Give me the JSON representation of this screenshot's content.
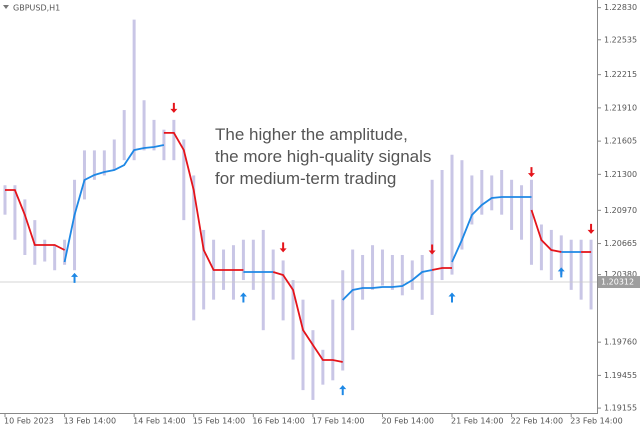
{
  "chart_data": {
    "type": "line",
    "title": "GBPUSD,H1",
    "annotation": [
      "The higher the amplitude,",
      "the more high-quality signals",
      "for medium-term trading"
    ],
    "categories": [
      "10 Feb 2023",
      null,
      null,
      null,
      null,
      null,
      "13 Feb 14:00",
      null,
      null,
      null,
      null,
      null,
      null,
      "14 Feb 14:00",
      null,
      null,
      null,
      null,
      null,
      "15 Feb 14:00",
      null,
      null,
      null,
      null,
      null,
      "16 Feb 14:00",
      null,
      null,
      null,
      null,
      null,
      "17 Feb 14:00",
      null,
      null,
      null,
      null,
      null,
      null,
      "20 Feb 14:00",
      null,
      null,
      null,
      null,
      null,
      null,
      "21 Feb 14:00",
      null,
      null,
      null,
      null,
      null,
      "22 Feb 14:00",
      null,
      null,
      null,
      null,
      null,
      "23 Feb 14:00",
      null,
      null
    ],
    "price_color": "#c9c6e6",
    "high": [
      1.212,
      1.212,
      1.2107,
      1.2088,
      1.207,
      1.2065,
      1.207,
      1.2125,
      1.2152,
      1.2152,
      1.2152,
      1.2162,
      1.2189,
      1.2272,
      1.2198,
      1.218,
      1.2171,
      1.218,
      1.2162,
      1.2129,
      1.2079,
      1.207,
      1.2061,
      1.2065,
      1.207,
      1.207,
      1.2079,
      1.2061,
      1.2051,
      1.2033,
      1.2015,
      1.1987,
      1.1969,
      1.2015,
      1.2042,
      1.2061,
      1.2056,
      1.2065,
      1.2061,
      1.2056,
      1.2056,
      1.2051,
      1.2056,
      1.2125,
      1.2134,
      1.2148,
      1.2143,
      1.2129,
      1.2134,
      1.2129,
      1.2134,
      1.2125,
      1.212,
      1.2125,
      1.2084,
      1.2079,
      1.2074,
      1.207,
      1.207,
      1.207
    ],
    "low": [
      1.2093,
      1.207,
      1.2056,
      1.2047,
      1.205,
      1.2042,
      1.2047,
      1.2042,
      1.2107,
      1.2125,
      1.2129,
      1.2134,
      1.2143,
      1.2143,
      1.2152,
      1.2152,
      1.2143,
      1.2143,
      1.2088,
      1.1996,
      1.2006,
      1.2015,
      1.2024,
      1.2015,
      1.2033,
      1.2024,
      1.1987,
      1.2015,
      1.1996,
      1.196,
      1.1932,
      1.1923,
      1.1937,
      1.1941,
      1.195,
      1.1987,
      1.2015,
      1.2024,
      1.2028,
      1.2024,
      1.2019,
      1.2024,
      1.2015,
      1.2001,
      1.2033,
      1.2038,
      1.2061,
      1.2084,
      1.2093,
      1.2097,
      1.2093,
      1.2079,
      1.207,
      1.2047,
      1.2042,
      1.2033,
      1.2038,
      1.2024,
      1.2015,
      1.2006
    ],
    "series": [
      {
        "color": "#1e88e5",
        "values": [
          null,
          null,
          null,
          null,
          null,
          null,
          1.20496,
          1.20927,
          1.21248,
          1.21294,
          1.21322,
          1.2134,
          1.21386,
          1.21523,
          1.21542,
          1.21551,
          1.21569,
          null,
          null,
          null,
          null,
          null,
          null,
          null,
          1.20404,
          1.20404,
          1.20404,
          1.20404,
          null,
          null,
          null,
          null,
          null,
          null,
          1.20147,
          1.20239,
          1.20257,
          1.20257,
          1.20266,
          1.20266,
          1.20275,
          1.2033,
          1.20404,
          1.20422,
          null,
          1.20496,
          1.20698,
          1.20927,
          1.21019,
          1.21083,
          1.21092,
          1.21092,
          1.21092,
          1.21092,
          null,
          null,
          1.20587,
          1.20587,
          1.20587,
          null
        ]
      },
      {
        "color": "#e5141b",
        "values": [
          1.21156,
          1.21156,
          1.20927,
          1.20652,
          1.20652,
          1.20652,
          1.20606,
          null,
          null,
          null,
          null,
          null,
          null,
          null,
          null,
          null,
          1.2168,
          1.2168,
          1.21523,
          1.21156,
          1.20606,
          1.20422,
          1.20422,
          1.20422,
          1.20422,
          null,
          null,
          1.20404,
          1.20376,
          1.20239,
          1.19872,
          1.19734,
          1.19596,
          1.19596,
          1.19578,
          null,
          null,
          null,
          null,
          null,
          null,
          null,
          null,
          1.20422,
          1.20441,
          1.20441,
          null,
          null,
          null,
          null,
          null,
          null,
          null,
          1.20973,
          1.20698,
          1.20606,
          1.20587,
          null,
          1.20587,
          1.20587
        ]
      }
    ],
    "buy_arrows": {
      "color": "#1e88e5",
      "values": [
        null,
        null,
        null,
        null,
        null,
        null,
        null,
        1.2035,
        null,
        null,
        null,
        null,
        null,
        null,
        null,
        null,
        null,
        null,
        null,
        null,
        null,
        null,
        null,
        null,
        1.2017,
        null,
        null,
        null,
        null,
        null,
        null,
        null,
        null,
        null,
        1.1932,
        null,
        null,
        null,
        null,
        null,
        null,
        null,
        null,
        null,
        null,
        1.2017,
        null,
        null,
        null,
        null,
        null,
        null,
        null,
        null,
        null,
        null,
        1.204,
        null,
        null,
        null
      ]
    },
    "sell_arrows": {
      "color": "#e5141b",
      "values": [
        null,
        null,
        null,
        null,
        null,
        null,
        null,
        null,
        null,
        null,
        null,
        null,
        null,
        null,
        null,
        null,
        null,
        1.2191,
        null,
        null,
        null,
        null,
        null,
        null,
        null,
        null,
        null,
        null,
        1.2063,
        null,
        null,
        null,
        null,
        null,
        null,
        null,
        null,
        null,
        null,
        null,
        null,
        null,
        null,
        1.2061,
        null,
        null,
        null,
        null,
        null,
        null,
        null,
        null,
        null,
        1.2132,
        null,
        null,
        null,
        null,
        null,
        1.208
      ]
    },
    "current_price": {
      "value": 1.20312,
      "label": "1.20312"
    },
    "ylim": [
      1.1911,
      1.229
    ],
    "yticks": [
      {
        "value": 1.2283,
        "label": "1.22830"
      },
      1.22535,
      1.22215,
      {
        "value": 1.2191,
        "label": "1.21910"
      },
      1.21605,
      {
        "value": 1.213,
        "label": "1.21300"
      },
      {
        "value": 1.2097,
        "label": "1.20970"
      },
      1.20665,
      {
        "value": 1.2038,
        "label": "1.20380"
      },
      {
        "value": 1.1976,
        "label": "1.19760"
      },
      1.19455,
      1.19155
    ]
  }
}
